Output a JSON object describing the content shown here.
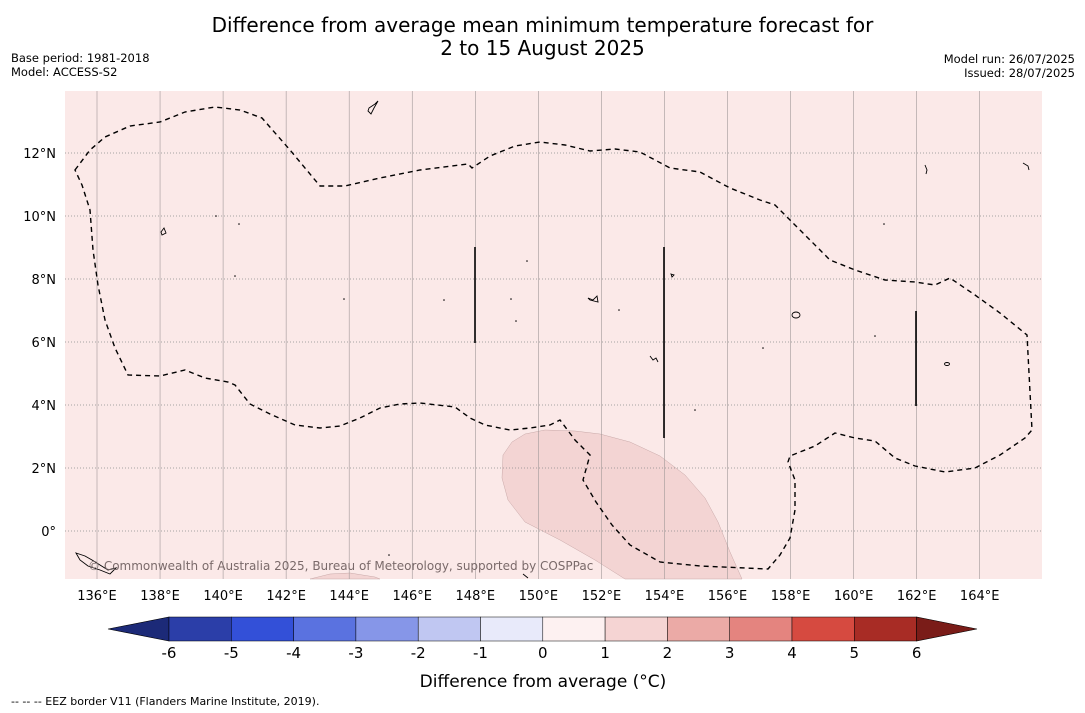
{
  "title": {
    "line1": "Difference from average mean minimum temperature forecast for",
    "line2": "2 to 15 August 2025"
  },
  "meta_left": {
    "base_period": "Base period: 1981-2018",
    "model": "Model: ACCESS-S2"
  },
  "meta_right": {
    "model_run": "Model run: 26/07/2025",
    "issued": "Issued: 28/07/2025"
  },
  "map": {
    "background_color": "#fbe9e8",
    "anomaly_patch_color": "#f3d4d3",
    "lon_ticks": [
      "136°E",
      "138°E",
      "140°E",
      "142°E",
      "144°E",
      "146°E",
      "148°E",
      "150°E",
      "152°E",
      "154°E",
      "156°E",
      "158°E",
      "160°E",
      "162°E",
      "164°E"
    ],
    "lat_ticks": [
      "12°N",
      "10°N",
      "8°N",
      "6°N",
      "4°N",
      "2°N",
      "0°"
    ],
    "copyright": "© Commonwealth of Australia 2025, Bureau of Meteorology, supported by COSPPac"
  },
  "colorbar": {
    "title": "Difference from average (°C)",
    "tick_labels": [
      "-6",
      "-5",
      "-4",
      "-3",
      "-2",
      "-1",
      "0",
      "1",
      "2",
      "3",
      "4",
      "5",
      "6"
    ],
    "colors": [
      "#2b3ea8",
      "#3350d8",
      "#5a72e0",
      "#8696e8",
      "#c0c7f2",
      "#e8eafa",
      "#fdf1f1",
      "#f5d4d3",
      "#ebaaa6",
      "#e4847f",
      "#d64a40",
      "#a82c25"
    ],
    "under_color": "#1c2a78",
    "over_color": "#7a1c18"
  },
  "footnote": "-- -- -- EEZ border V11 (Flanders Marine Institute, 2019)."
}
